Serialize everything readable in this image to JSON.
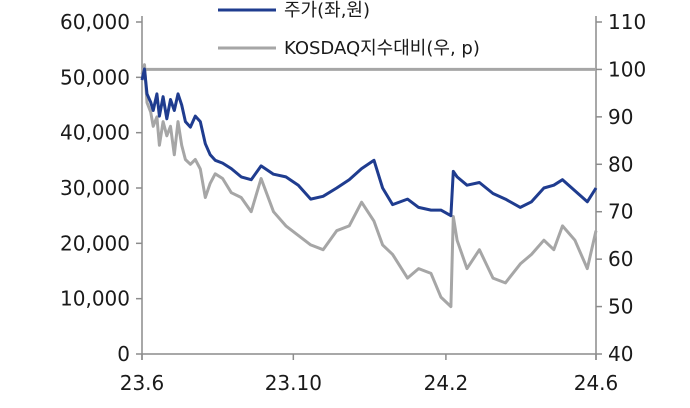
{
  "chart_data": {
    "type": "line",
    "x_ticks": [
      "23.6",
      "23.10",
      "24.2",
      "24.6"
    ],
    "y_left": {
      "min": 0,
      "max": 60000,
      "ticks": [
        "0",
        "10,000",
        "20,000",
        "30,000",
        "40,000",
        "50,000",
        "60,000"
      ]
    },
    "y_right": {
      "min": 40,
      "max": 110,
      "ticks": [
        "40",
        "50",
        "60",
        "70",
        "80",
        "90",
        "100",
        "110"
      ]
    },
    "reference_line": {
      "axis": "right",
      "value": 100
    },
    "series": [
      {
        "name": "주가(좌,원)",
        "axis": "left",
        "color": "#1f3c8f",
        "x": [
          "2023-06-01",
          "2023-06-03",
          "2023-06-05",
          "2023-06-08",
          "2023-06-10",
          "2023-06-13",
          "2023-06-15",
          "2023-06-18",
          "2023-06-21",
          "2023-06-24",
          "2023-06-27",
          "2023-06-30",
          "2023-07-03",
          "2023-07-06",
          "2023-07-10",
          "2023-07-14",
          "2023-07-18",
          "2023-07-22",
          "2023-07-26",
          "2023-07-30",
          "2023-08-05",
          "2023-08-12",
          "2023-08-20",
          "2023-08-28",
          "2023-09-05",
          "2023-09-15",
          "2023-09-25",
          "2023-10-05",
          "2023-10-15",
          "2023-10-25",
          "2023-11-05",
          "2023-11-15",
          "2023-11-25",
          "2023-12-05",
          "2023-12-12",
          "2023-12-20",
          "2024-01-01",
          "2024-01-10",
          "2024-01-20",
          "2024-01-28",
          "2024-02-05",
          "2024-02-07",
          "2024-02-10",
          "2024-02-18",
          "2024-02-28",
          "2024-03-10",
          "2024-03-20",
          "2024-04-01",
          "2024-04-10",
          "2024-04-20",
          "2024-04-28",
          "2024-05-05",
          "2024-05-15",
          "2024-05-25",
          "2024-06-01"
        ],
        "values": [
          49500,
          51500,
          47000,
          45500,
          44000,
          47000,
          43000,
          46500,
          42500,
          46000,
          44000,
          47000,
          45000,
          42000,
          41000,
          43000,
          42000,
          38000,
          36000,
          35000,
          34500,
          33500,
          32000,
          31500,
          34000,
          32500,
          32000,
          30500,
          28000,
          28500,
          30000,
          31500,
          33500,
          35000,
          30000,
          27000,
          28000,
          26500,
          26000,
          26000,
          25000,
          33000,
          32000,
          30500,
          31000,
          29000,
          28000,
          26500,
          27500,
          30000,
          30500,
          31500,
          29500,
          27500,
          30000
        ]
      },
      {
        "name": "KOSDAQ지수대비(우, p)",
        "axis": "right",
        "color": "#a6a6a6",
        "x": [
          "2023-06-01",
          "2023-06-03",
          "2023-06-05",
          "2023-06-08",
          "2023-06-10",
          "2023-06-13",
          "2023-06-15",
          "2023-06-18",
          "2023-06-21",
          "2023-06-24",
          "2023-06-27",
          "2023-06-30",
          "2023-07-03",
          "2023-07-06",
          "2023-07-10",
          "2023-07-14",
          "2023-07-18",
          "2023-07-22",
          "2023-07-26",
          "2023-07-30",
          "2023-08-05",
          "2023-08-12",
          "2023-08-20",
          "2023-08-28",
          "2023-09-05",
          "2023-09-15",
          "2023-09-25",
          "2023-10-05",
          "2023-10-15",
          "2023-10-25",
          "2023-11-05",
          "2023-11-15",
          "2023-11-25",
          "2023-12-05",
          "2023-12-12",
          "2023-12-20",
          "2024-01-01",
          "2024-01-10",
          "2024-01-20",
          "2024-01-28",
          "2024-02-05",
          "2024-02-07",
          "2024-02-10",
          "2024-02-18",
          "2024-02-28",
          "2024-03-10",
          "2024-03-20",
          "2024-04-01",
          "2024-04-10",
          "2024-04-20",
          "2024-04-28",
          "2024-05-05",
          "2024-05-15",
          "2024-05-25",
          "2024-06-01"
        ],
        "values": [
          99,
          101,
          93,
          91,
          88,
          90,
          84,
          89,
          86,
          88,
          82,
          89,
          84,
          81,
          80,
          81,
          79,
          73,
          76,
          78,
          77,
          74,
          73,
          70,
          77,
          70,
          67,
          65,
          63,
          62,
          66,
          67,
          72,
          68,
          63,
          61,
          56,
          58,
          57,
          52,
          50,
          69,
          64,
          58,
          62,
          56,
          55,
          59,
          61,
          64,
          62,
          67,
          64,
          58,
          66
        ]
      }
    ]
  }
}
